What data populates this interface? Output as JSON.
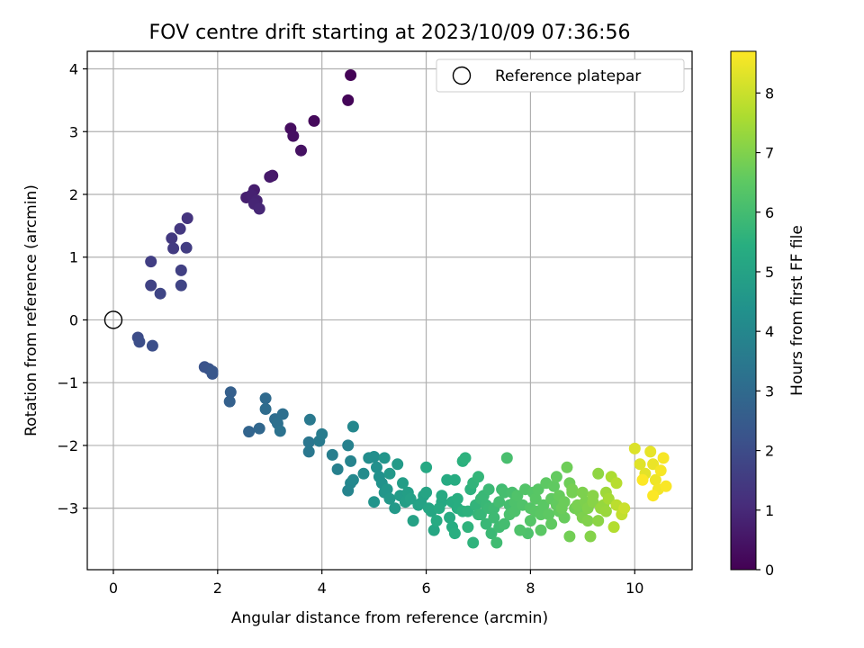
{
  "chart_data": {
    "type": "scatter",
    "title": "FOV centre drift starting at 2023/10/09 07:36:56",
    "xlabel": "Angular distance from reference (arcmin)",
    "ylabel": "Rotation from reference (arcmin)",
    "xlim": [
      -0.5,
      11.1
    ],
    "ylim": [
      -3.98,
      4.28
    ],
    "xticks": [
      0,
      2,
      4,
      6,
      8,
      10
    ],
    "yticks": [
      -3,
      -2,
      -1,
      0,
      1,
      2,
      3,
      4
    ],
    "xtick_labels": [
      "0",
      "2",
      "4",
      "6",
      "8",
      "10"
    ],
    "ytick_labels": [
      "−3",
      "−2",
      "−1",
      "0",
      "1",
      "2",
      "3",
      "4"
    ],
    "grid": true,
    "legend": {
      "placement": "top-right",
      "entries": [
        {
          "marker": "open-circle",
          "label": "Reference platepar"
        }
      ]
    },
    "reference_point": {
      "x": 0,
      "y": 0
    },
    "colorbar": {
      "label": "Hours from first FF file",
      "colormap": "viridis",
      "range": [
        0,
        8.7
      ],
      "ticks": [
        0,
        1,
        2,
        3,
        4,
        5,
        6,
        7,
        8
      ],
      "tick_labels": [
        "0",
        "1",
        "2",
        "3",
        "4",
        "5",
        "6",
        "7",
        "8"
      ]
    },
    "points": [
      [
        4.55,
        3.9,
        0.05
      ],
      [
        4.5,
        3.5,
        0.1
      ],
      [
        3.85,
        3.17,
        0.2
      ],
      [
        3.4,
        3.05,
        0.3
      ],
      [
        3.45,
        2.93,
        0.35
      ],
      [
        3.6,
        2.7,
        0.4
      ],
      [
        3.05,
        2.3,
        0.55
      ],
      [
        3.0,
        2.28,
        0.6
      ],
      [
        2.7,
        2.07,
        0.7
      ],
      [
        2.55,
        1.95,
        0.75
      ],
      [
        2.65,
        1.99,
        0.8
      ],
      [
        2.75,
        1.9,
        0.85
      ],
      [
        2.7,
        1.85,
        0.9
      ],
      [
        2.8,
        1.77,
        0.95
      ],
      [
        1.42,
        1.62,
        1.3
      ],
      [
        1.28,
        1.45,
        1.4
      ],
      [
        1.12,
        1.3,
        1.45
      ],
      [
        1.15,
        1.14,
        1.5
      ],
      [
        1.4,
        1.15,
        1.55
      ],
      [
        0.72,
        0.93,
        1.6
      ],
      [
        1.3,
        0.79,
        1.65
      ],
      [
        0.72,
        0.55,
        1.7
      ],
      [
        1.3,
        0.55,
        1.75
      ],
      [
        0.9,
        0.42,
        1.8
      ],
      [
        0.47,
        -0.28,
        2.0
      ],
      [
        0.5,
        -0.35,
        2.05
      ],
      [
        0.75,
        -0.41,
        2.1
      ],
      [
        1.75,
        -0.75,
        2.2
      ],
      [
        1.83,
        -0.78,
        2.25
      ],
      [
        1.9,
        -0.86,
        2.3
      ],
      [
        1.9,
        -0.82,
        2.35
      ],
      [
        2.25,
        -1.15,
        2.6
      ],
      [
        2.23,
        -1.3,
        2.65
      ],
      [
        2.6,
        -1.78,
        2.8
      ],
      [
        2.8,
        -1.73,
        2.9
      ],
      [
        2.92,
        -1.25,
        3.0
      ],
      [
        2.92,
        -1.42,
        3.05
      ],
      [
        3.1,
        -1.58,
        3.1
      ],
      [
        3.25,
        -1.5,
        3.15
      ],
      [
        3.15,
        -1.65,
        3.2
      ],
      [
        3.2,
        -1.77,
        3.25
      ],
      [
        3.75,
        -1.95,
        3.4
      ],
      [
        3.75,
        -2.1,
        3.45
      ],
      [
        3.77,
        -1.59,
        3.5
      ],
      [
        3.95,
        -1.93,
        3.55
      ],
      [
        4.0,
        -1.82,
        3.6
      ],
      [
        4.2,
        -2.15,
        3.7
      ],
      [
        4.3,
        -2.38,
        3.75
      ],
      [
        4.5,
        -2.0,
        3.8
      ],
      [
        4.55,
        -2.25,
        3.85
      ],
      [
        4.5,
        -2.72,
        3.9
      ],
      [
        4.55,
        -2.6,
        3.95
      ],
      [
        4.6,
        -1.7,
        4.0
      ],
      [
        4.6,
        -2.55,
        4.05
      ],
      [
        4.9,
        -2.2,
        4.2
      ],
      [
        5.0,
        -2.18,
        4.25
      ],
      [
        5.05,
        -2.35,
        4.3
      ],
      [
        5.1,
        -2.5,
        4.35
      ],
      [
        5.15,
        -2.6,
        4.4
      ],
      [
        5.0,
        -2.9,
        4.45
      ],
      [
        5.2,
        -2.2,
        4.5
      ],
      [
        5.2,
        -2.75,
        4.55
      ],
      [
        5.3,
        -2.85,
        4.6
      ],
      [
        5.4,
        -3.0,
        4.65
      ],
      [
        5.45,
        -2.3,
        4.7
      ],
      [
        5.5,
        -2.8,
        4.75
      ],
      [
        5.55,
        -2.6,
        4.8
      ],
      [
        5.6,
        -2.9,
        4.85
      ],
      [
        5.7,
        -2.85,
        4.9
      ],
      [
        5.75,
        -3.2,
        4.95
      ],
      [
        5.9,
        -2.92,
        5.0
      ],
      [
        6.0,
        -2.75,
        5.05
      ],
      [
        6.05,
        -3.0,
        5.1
      ],
      [
        6.1,
        -3.05,
        5.15
      ],
      [
        6.0,
        -2.35,
        5.2
      ],
      [
        6.3,
        -2.8,
        5.25
      ],
      [
        6.4,
        -2.55,
        5.3
      ],
      [
        6.5,
        -2.9,
        5.35
      ],
      [
        6.6,
        -3.0,
        5.4
      ],
      [
        6.55,
        -3.4,
        5.45
      ],
      [
        6.7,
        -2.25,
        5.5
      ],
      [
        6.75,
        -2.2,
        5.55
      ],
      [
        6.8,
        -3.3,
        5.6
      ],
      [
        6.9,
        -2.6,
        5.65
      ],
      [
        7.0,
        -2.5,
        5.7
      ],
      [
        7.05,
        -3.1,
        5.75
      ],
      [
        7.1,
        -2.8,
        5.8
      ],
      [
        7.2,
        -2.7,
        5.85
      ],
      [
        7.3,
        -3.0,
        5.9
      ],
      [
        7.35,
        -3.55,
        5.95
      ],
      [
        7.4,
        -2.9,
        6.0
      ],
      [
        7.5,
        -2.75,
        6.05
      ],
      [
        7.55,
        -2.2,
        6.1
      ],
      [
        7.6,
        -3.1,
        6.15
      ],
      [
        7.7,
        -2.9,
        6.2
      ],
      [
        7.8,
        -3.35,
        6.25
      ],
      [
        7.9,
        -2.7,
        6.3
      ],
      [
        8.0,
        -3.0,
        6.35
      ],
      [
        8.1,
        -2.85,
        6.4
      ],
      [
        8.2,
        -3.1,
        6.45
      ],
      [
        8.3,
        -2.6,
        6.5
      ],
      [
        8.4,
        -3.25,
        6.55
      ],
      [
        8.5,
        -2.5,
        6.6
      ],
      [
        8.55,
        -2.8,
        6.65
      ],
      [
        8.6,
        -3.0,
        6.7
      ],
      [
        8.7,
        -2.35,
        6.75
      ],
      [
        8.75,
        -3.45,
        6.8
      ],
      [
        8.8,
        -2.7,
        6.85
      ],
      [
        8.9,
        -2.95,
        6.9
      ],
      [
        9.0,
        -2.75,
        6.95
      ],
      [
        9.1,
        -3.2,
        7.0
      ],
      [
        9.15,
        -3.45,
        7.05
      ],
      [
        9.2,
        -2.8,
        7.1
      ],
      [
        9.3,
        -2.45,
        7.2
      ],
      [
        9.35,
        -3.0,
        7.3
      ],
      [
        9.45,
        -2.75,
        7.4
      ],
      [
        9.5,
        -2.85,
        7.5
      ],
      [
        9.55,
        -2.5,
        7.6
      ],
      [
        9.6,
        -3.3,
        7.7
      ],
      [
        9.65,
        -2.95,
        7.8
      ],
      [
        9.75,
        -3.1,
        7.9
      ],
      [
        9.8,
        -3.0,
        8.0
      ],
      [
        10.0,
        -2.05,
        8.25
      ],
      [
        10.1,
        -2.3,
        8.3
      ],
      [
        10.2,
        -2.45,
        8.35
      ],
      [
        10.3,
        -2.1,
        8.4
      ],
      [
        10.35,
        -2.3,
        8.45
      ],
      [
        10.4,
        -2.55,
        8.5
      ],
      [
        10.45,
        -2.7,
        8.55
      ],
      [
        10.5,
        -2.4,
        8.6
      ],
      [
        10.55,
        -2.2,
        8.62
      ],
      [
        10.6,
        -2.65,
        8.65
      ],
      [
        10.35,
        -2.8,
        8.67
      ],
      [
        10.15,
        -2.55,
        8.68
      ],
      [
        6.2,
        -3.2,
        5.3
      ],
      [
        6.9,
        -3.55,
        5.6
      ],
      [
        7.25,
        -3.4,
        5.85
      ],
      [
        7.6,
        -2.95,
        6.05
      ],
      [
        7.95,
        -3.4,
        6.2
      ],
      [
        8.25,
        -2.95,
        6.45
      ],
      [
        8.65,
        -3.15,
        6.65
      ],
      [
        8.95,
        -3.05,
        6.85
      ],
      [
        9.3,
        -3.2,
        7.15
      ],
      [
        9.65,
        -2.6,
        7.75
      ],
      [
        5.85,
        -2.95,
        4.95
      ],
      [
        6.45,
        -3.15,
        5.3
      ],
      [
        6.95,
        -2.95,
        5.65
      ],
      [
        7.3,
        -3.15,
        5.9
      ],
      [
        7.7,
        -3.05,
        6.2
      ],
      [
        8.05,
        -2.75,
        6.35
      ],
      [
        8.4,
        -2.85,
        6.55
      ],
      [
        8.75,
        -2.6,
        6.75
      ],
      [
        9.05,
        -2.9,
        6.95
      ],
      [
        9.45,
        -3.05,
        7.35
      ],
      [
        6.3,
        -2.9,
        5.2
      ],
      [
        6.55,
        -2.55,
        5.35
      ],
      [
        6.8,
        -3.05,
        5.55
      ],
      [
        7.15,
        -3.25,
        5.8
      ],
      [
        7.45,
        -2.7,
        5.95
      ],
      [
        7.85,
        -2.95,
        6.25
      ],
      [
        8.2,
        -3.35,
        6.45
      ],
      [
        8.55,
        -3.05,
        6.6
      ],
      [
        8.85,
        -3.0,
        6.8
      ],
      [
        9.2,
        -2.9,
        7.1
      ],
      [
        5.25,
        -2.7,
        4.55
      ],
      [
        5.65,
        -2.75,
        4.85
      ],
      [
        6.15,
        -3.35,
        5.15
      ],
      [
        6.7,
        -3.05,
        5.5
      ],
      [
        7.05,
        -2.85,
        5.75
      ],
      [
        7.4,
        -3.3,
        5.95
      ],
      [
        7.75,
        -2.8,
        6.25
      ],
      [
        8.15,
        -2.7,
        6.4
      ],
      [
        8.45,
        -2.65,
        6.55
      ],
      [
        8.8,
        -2.75,
        6.85
      ],
      [
        9.1,
        -3.0,
        7.0
      ],
      [
        9.4,
        -2.95,
        7.3
      ],
      [
        7.2,
        -3.0,
        5.85
      ],
      [
        7.5,
        -3.25,
        6.0
      ],
      [
        8.0,
        -3.2,
        6.35
      ],
      [
        8.35,
        -3.1,
        6.5
      ],
      [
        8.65,
        -2.9,
        6.7
      ],
      [
        9.0,
        -3.15,
        6.95
      ],
      [
        6.6,
        -2.85,
        5.4
      ],
      [
        6.85,
        -2.7,
        5.55
      ],
      [
        7.15,
        -2.95,
        5.8
      ],
      [
        7.65,
        -2.75,
        6.1
      ],
      [
        8.1,
        -3.05,
        6.4
      ],
      [
        8.5,
        -2.95,
        6.6
      ],
      [
        4.8,
        -2.45,
        4.15
      ],
      [
        5.3,
        -2.45,
        4.6
      ],
      [
        5.95,
        -2.8,
        5.0
      ],
      [
        6.25,
        -3.0,
        5.25
      ],
      [
        6.5,
        -3.3,
        5.35
      ],
      [
        7.0,
        -3.1,
        5.7
      ]
    ]
  }
}
